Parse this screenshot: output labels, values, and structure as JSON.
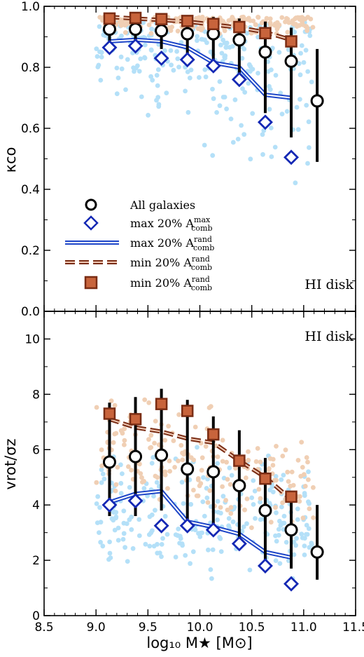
{
  "figure": {
    "x_axis": {
      "label": "log₁₀ M★ [M⊙]",
      "range": [
        8.5,
        11.5
      ],
      "ticks": [
        "8.5",
        "9.0",
        "9.5",
        "10.0",
        "10.5",
        "11.0",
        "11.5"
      ]
    },
    "legend": [
      {
        "key": "all",
        "text": "All galaxies",
        "sup": "",
        "sub": ""
      },
      {
        "key": "max_diamond",
        "text": "max 20% A",
        "sup": "max",
        "sub": "comb"
      },
      {
        "key": "max_line",
        "text": "max 20% A",
        "sup": "rand",
        "sub": "comb"
      },
      {
        "key": "min_line",
        "text": "min 20% A",
        "sup": "rand",
        "sub": "comb"
      },
      {
        "key": "min_square",
        "text": "min 20% A",
        "sup": "rand",
        "sub": "comb"
      }
    ],
    "colors": {
      "blue_points": "#5bbcf0",
      "orange_points": "#e0965a",
      "diamond_edge": "#1428b4",
      "blue_line": "#1e46c8",
      "square_fill": "#c8643c",
      "square_edge": "#7a2d14",
      "black": "#000000"
    }
  },
  "chart_data": [
    {
      "type": "scatter",
      "panel": "top",
      "panel_label": "HI disk",
      "ylabel": "κco",
      "ylim": [
        0.0,
        1.0
      ],
      "yticks": [
        "0.0",
        "0.2",
        "0.4",
        "0.6",
        "0.8",
        "1.0"
      ],
      "x": [
        9.13,
        9.38,
        9.63,
        9.88,
        10.13,
        10.38,
        10.63,
        10.88,
        11.13
      ],
      "series": [
        {
          "name": "All galaxies",
          "marker": "circle",
          "values": [
            0.925,
            0.925,
            0.92,
            0.91,
            0.91,
            0.89,
            0.85,
            0.82,
            0.69
          ],
          "err_low": [
            0.865,
            0.865,
            0.86,
            0.83,
            0.81,
            0.76,
            0.65,
            0.57,
            0.49
          ],
          "err_high": [
            0.97,
            0.97,
            0.97,
            0.965,
            0.965,
            0.96,
            0.95,
            0.93,
            0.86
          ]
        },
        {
          "name": "max 20% A comb max",
          "marker": "diamond",
          "x": [
            9.13,
            9.38,
            9.63,
            9.88,
            10.13,
            10.38,
            10.63,
            10.88
          ],
          "values": [
            0.865,
            0.87,
            0.83,
            0.825,
            0.805,
            0.76,
            0.62,
            0.505
          ]
        },
        {
          "name": "max 20% A comb rand",
          "marker": "line_blue",
          "x": [
            9.13,
            9.38,
            9.63,
            9.88,
            10.13,
            10.38,
            10.63,
            10.88
          ],
          "values": [
            0.885,
            0.89,
            0.885,
            0.865,
            0.815,
            0.8,
            0.71,
            0.7
          ]
        },
        {
          "name": "min 20% A comb rand",
          "marker": "line_dashed",
          "x": [
            9.13,
            9.38,
            9.63,
            9.88,
            10.13,
            10.38,
            10.63,
            10.88
          ],
          "values": [
            0.965,
            0.96,
            0.955,
            0.95,
            0.94,
            0.93,
            0.915,
            0.89
          ]
        },
        {
          "name": "min 20% A comb rand squares",
          "marker": "square",
          "x": [
            9.13,
            9.38,
            9.63,
            9.88,
            10.13,
            10.38,
            10.63,
            10.88
          ],
          "values": [
            0.96,
            0.962,
            0.958,
            0.952,
            0.942,
            0.932,
            0.912,
            0.885
          ]
        }
      ]
    },
    {
      "type": "scatter",
      "panel": "bottom",
      "panel_label": "HI disk",
      "ylabel": "vrot/σz",
      "ylim": [
        0,
        11
      ],
      "yticks": [
        "0",
        "2",
        "4",
        "6",
        "8",
        "10"
      ],
      "x": [
        9.13,
        9.38,
        9.63,
        9.88,
        10.13,
        10.38,
        10.63,
        10.88,
        11.13
      ],
      "series": [
        {
          "name": "All galaxies",
          "marker": "circle",
          "values": [
            5.55,
            5.75,
            5.8,
            5.3,
            5.2,
            4.7,
            3.8,
            3.1,
            2.3
          ],
          "err_low": [
            3.6,
            3.6,
            3.8,
            3.4,
            3.2,
            2.6,
            2.0,
            1.7,
            1.3
          ],
          "err_high": [
            7.7,
            7.9,
            8.2,
            7.8,
            7.2,
            6.7,
            5.7,
            4.5,
            4.0
          ]
        },
        {
          "name": "max 20% A comb max",
          "marker": "diamond",
          "x": [
            9.13,
            9.38,
            9.63,
            9.88,
            10.13,
            10.38,
            10.63,
            10.88
          ],
          "values": [
            4.0,
            4.15,
            3.25,
            3.25,
            3.1,
            2.6,
            1.8,
            1.15
          ]
        },
        {
          "name": "max 20% A comb rand",
          "marker": "line_blue",
          "x": [
            9.13,
            9.38,
            9.63,
            9.88,
            10.13,
            10.38,
            10.63,
            10.88
          ],
          "values": [
            4.1,
            4.4,
            4.5,
            3.4,
            3.2,
            2.95,
            2.3,
            2.1
          ]
        },
        {
          "name": "min 20% A comb rand",
          "marker": "line_dashed",
          "x": [
            9.13,
            9.38,
            9.63,
            9.88,
            10.13,
            10.38,
            10.63,
            10.88
          ],
          "values": [
            7.1,
            6.8,
            6.65,
            6.4,
            6.25,
            5.6,
            5.0,
            4.2
          ]
        },
        {
          "name": "min 20% A comb rand squares",
          "marker": "square",
          "x": [
            9.13,
            9.38,
            9.63,
            9.88,
            10.13,
            10.38,
            10.63,
            10.88
          ],
          "values": [
            7.3,
            7.1,
            7.65,
            7.4,
            6.55,
            5.6,
            4.95,
            4.3
          ]
        }
      ]
    }
  ]
}
